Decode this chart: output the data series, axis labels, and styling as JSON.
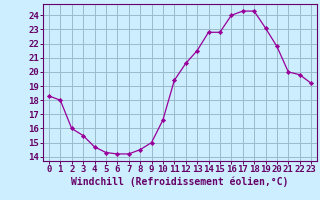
{
  "hours": [
    0,
    1,
    2,
    3,
    4,
    5,
    6,
    7,
    8,
    9,
    10,
    11,
    12,
    13,
    14,
    15,
    16,
    17,
    18,
    19,
    20,
    21,
    22,
    23
  ],
  "values": [
    18.3,
    18.0,
    16.0,
    15.5,
    14.7,
    14.3,
    14.2,
    14.2,
    14.5,
    15.0,
    16.6,
    19.4,
    20.6,
    21.5,
    22.8,
    22.8,
    24.0,
    24.3,
    24.3,
    23.1,
    21.8,
    20.0,
    19.8,
    19.2
  ],
  "line_color": "#990099",
  "marker_color": "#990099",
  "bg_color": "#cceeff",
  "grid_color": "#99bbcc",
  "xlabel": "Windchill (Refroidissement éolien,°C)",
  "ylabel_ticks": [
    14,
    15,
    16,
    17,
    18,
    19,
    20,
    21,
    22,
    23,
    24
  ],
  "ylim": [
    13.7,
    24.8
  ],
  "xlim": [
    -0.5,
    23.5
  ],
  "tick_color": "#660066",
  "label_color": "#660066",
  "axis_spine_color": "#660066",
  "font_size_axis": 6.5,
  "font_size_xlabel": 7.0
}
